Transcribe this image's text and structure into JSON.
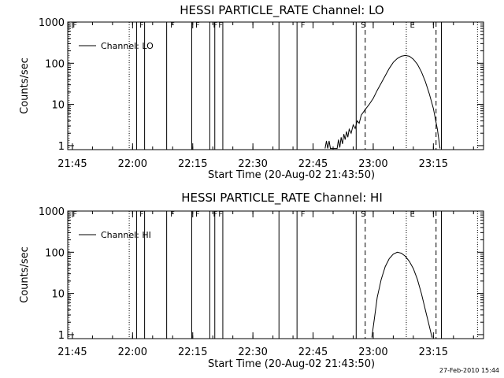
{
  "footer": {
    "timestamp": "27-Feb-2010 15:44"
  },
  "chart_data": [
    {
      "type": "line",
      "title": "HESSI PARTICLE_RATE Channel: LO",
      "xlabel": "Start Time (20-Aug-02 21:43:50)",
      "ylabel": "Counts/sec",
      "y_scale": "log",
      "ylim": [
        0.8,
        1000
      ],
      "xlim": [
        "21:43:50",
        "23:27:30"
      ],
      "x_tick_labels": [
        "21:45",
        "22:00",
        "22:15",
        "22:30",
        "22:45",
        "23:00",
        "23:15"
      ],
      "y_tick_labels": [
        "1",
        "10",
        "100",
        "1000"
      ],
      "legend": {
        "placement": "top-left",
        "entries": [
          "Channel: LO"
        ]
      },
      "flag_letters": [
        "F",
        "F",
        "F",
        "F",
        "F",
        "F",
        "F",
        "S",
        "E"
      ],
      "marker_lines": {
        "solid": [
          "22:01:00",
          "22:03:00",
          "22:08:30",
          "22:14:45",
          "22:19:15",
          "22:20:30",
          "22:22:30",
          "22:36:30",
          "22:41:00",
          "22:55:45",
          "23:17:00"
        ],
        "dotted": [
          "21:44:10",
          "21:59:10",
          "23:08:15",
          "23:26:00"
        ],
        "dashed": [
          "22:58:00",
          "23:15:40"
        ]
      },
      "series": [
        {
          "name": "Channel: LO",
          "color": "#000000",
          "points": [
            [
              "22:48:00",
              0.85
            ],
            [
              "22:48:20",
              1.3
            ],
            [
              "22:48:40",
              0.85
            ],
            [
              "22:49:00",
              1.3
            ],
            [
              "22:49:20",
              0.85
            ],
            [
              "22:51:00",
              0.85
            ],
            [
              "22:51:20",
              1.4
            ],
            [
              "22:51:40",
              0.9
            ],
            [
              "22:52:00",
              1.6
            ],
            [
              "22:52:20",
              1.1
            ],
            [
              "22:52:40",
              1.9
            ],
            [
              "22:53:00",
              1.4
            ],
            [
              "22:53:20",
              2.2
            ],
            [
              "22:53:40",
              1.6
            ],
            [
              "22:54:00",
              2.5
            ],
            [
              "22:54:30",
              2.0
            ],
            [
              "22:55:00",
              3.2
            ],
            [
              "22:55:30",
              2.6
            ],
            [
              "22:56:00",
              4.0
            ],
            [
              "22:56:30",
              3.5
            ],
            [
              "22:57:00",
              5.5
            ],
            [
              "22:58:00",
              7.5
            ],
            [
              "22:59:00",
              10
            ],
            [
              "23:00:00",
              14
            ],
            [
              "23:01:00",
              22
            ],
            [
              "23:02:00",
              33
            ],
            [
              "23:03:00",
              50
            ],
            [
              "23:04:00",
              75
            ],
            [
              "23:05:00",
              105
            ],
            [
              "23:06:00",
              130
            ],
            [
              "23:07:00",
              148
            ],
            [
              "23:08:00",
              155
            ],
            [
              "23:09:00",
              148
            ],
            [
              "23:10:00",
              125
            ],
            [
              "23:11:00",
              95
            ],
            [
              "23:12:00",
              62
            ],
            [
              "23:13:00",
              36
            ],
            [
              "23:14:00",
              18
            ],
            [
              "23:15:00",
              8
            ],
            [
              "23:16:00",
              2.5
            ],
            [
              "23:16:40",
              0.85
            ]
          ]
        }
      ]
    },
    {
      "type": "line",
      "title": "HESSI PARTICLE_RATE Channel: HI",
      "xlabel": "Start Time (20-Aug-02 21:43:50)",
      "ylabel": "Counts/sec",
      "y_scale": "log",
      "ylim": [
        0.8,
        1000
      ],
      "xlim": [
        "21:43:50",
        "23:27:30"
      ],
      "x_tick_labels": [
        "21:45",
        "22:00",
        "22:15",
        "22:30",
        "22:45",
        "23:00",
        "23:15"
      ],
      "y_tick_labels": [
        "1",
        "10",
        "100",
        "1000"
      ],
      "legend": {
        "placement": "top-left",
        "entries": [
          "Channel: HI"
        ]
      },
      "flag_letters": [
        "F",
        "F",
        "F",
        "F",
        "F",
        "F",
        "F",
        "S",
        "E"
      ],
      "marker_lines": {
        "solid": [
          "22:01:00",
          "22:03:00",
          "22:08:30",
          "22:14:45",
          "22:19:15",
          "22:20:30",
          "22:22:30",
          "22:36:30",
          "22:41:00",
          "22:55:45",
          "23:17:00"
        ],
        "dotted": [
          "21:44:10",
          "21:59:10",
          "23:08:15",
          "23:26:00"
        ],
        "dashed": [
          "22:58:00",
          "23:15:40"
        ]
      },
      "series": [
        {
          "name": "Channel: HI",
          "color": "#000000",
          "points": [
            [
              "22:59:40",
              0.85
            ],
            [
              "23:00:00",
              1.5
            ],
            [
              "23:00:30",
              3.5
            ],
            [
              "23:01:00",
              8
            ],
            [
              "23:02:00",
              22
            ],
            [
              "23:03:00",
              45
            ],
            [
              "23:04:00",
              70
            ],
            [
              "23:05:00",
              90
            ],
            [
              "23:06:00",
              100
            ],
            [
              "23:07:00",
              95
            ],
            [
              "23:08:00",
              80
            ],
            [
              "23:09:00",
              60
            ],
            [
              "23:10:00",
              40
            ],
            [
              "23:11:00",
              22
            ],
            [
              "23:12:00",
              10
            ],
            [
              "23:13:00",
              4
            ],
            [
              "23:14:00",
              1.6
            ],
            [
              "23:14:40",
              0.85
            ]
          ]
        }
      ]
    }
  ]
}
